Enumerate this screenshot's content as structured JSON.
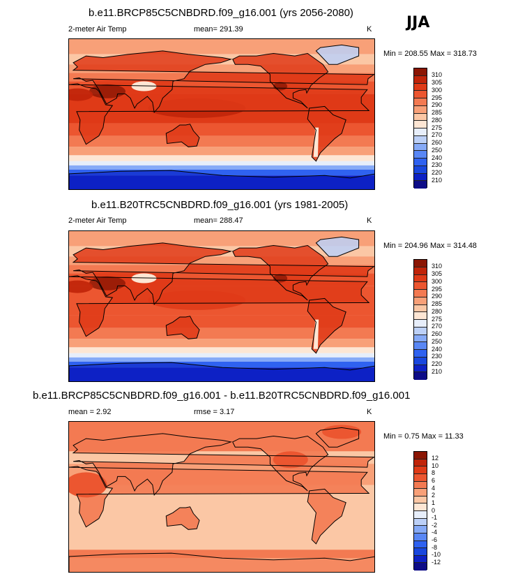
{
  "season": "JJA",
  "panels": [
    {
      "title": "b.e11.BRCP85C5CNBDRD.f09_g16.001 (yrs 2056-2080)",
      "left_label": "2-meter Air Temp",
      "mid_label": "mean= 291.39",
      "units": "K",
      "minmax": "Min = 208.55 Max = 318.73"
    },
    {
      "title": "b.e11.B20TRC5CNBDRD.f09_g16.001 (yrs 1981-2005)",
      "left_label": "2-meter Air Temp",
      "mid_label": "mean= 288.47",
      "units": "K",
      "minmax": "Min = 204.96 Max = 314.48"
    },
    {
      "title": "b.e11.BRCP85C5CNBDRD.f09_g16.001 - b.e11.B20TRC5CNBDRD.f09_g16.001",
      "left_label": "mean =   2.92",
      "mid_label": "rmse =   3.17",
      "units": "K",
      "minmax": "Min =   0.75 Max =  11.33"
    }
  ],
  "chart_data": [
    {
      "type": "heatmap",
      "title": "b.e11.BRCP85C5CNBDRD.f09_g16.001 (yrs 2056-2080)",
      "variable": "2-meter Air Temp",
      "units": "K",
      "mean": 291.39,
      "min": 208.55,
      "max": 318.73,
      "colorbar_levels": [
        210,
        220,
        230,
        240,
        250,
        260,
        270,
        275,
        280,
        285,
        290,
        295,
        300,
        305,
        310
      ],
      "colorbar_colors": [
        "#0d0c87",
        "#0d21c5",
        "#1947de",
        "#2f62f0",
        "#5987f5",
        "#86aaf7",
        "#bcd0f7",
        "#e7eefa",
        "#fde6d4",
        "#fbc7a5",
        "#f8a078",
        "#f37a52",
        "#ec5630",
        "#df3a17",
        "#c02409",
        "#8b1604"
      ]
    },
    {
      "type": "heatmap",
      "title": "b.e11.B20TRC5CNBDRD.f09_g16.001 (yrs 1981-2005)",
      "variable": "2-meter Air Temp",
      "units": "K",
      "mean": 288.47,
      "min": 204.96,
      "max": 314.48,
      "colorbar_levels": [
        210,
        220,
        230,
        240,
        250,
        260,
        270,
        275,
        280,
        285,
        290,
        295,
        300,
        305,
        310
      ],
      "colorbar_colors": [
        "#0d0c87",
        "#0d21c5",
        "#1947de",
        "#2f62f0",
        "#5987f5",
        "#86aaf7",
        "#bcd0f7",
        "#e7eefa",
        "#fde6d4",
        "#fbc7a5",
        "#f8a078",
        "#f37a52",
        "#ec5630",
        "#df3a17",
        "#c02409",
        "#8b1604"
      ]
    },
    {
      "type": "heatmap",
      "title": "b.e11.BRCP85C5CNBDRD.f09_g16.001 - b.e11.B20TRC5CNBDRD.f09_g16.001",
      "units": "K",
      "mean": 2.92,
      "rmse": 3.17,
      "min": 0.75,
      "max": 11.33,
      "colorbar_levels": [
        -12,
        -10,
        -8,
        -6,
        -4,
        -2,
        -1,
        0,
        1,
        2,
        4,
        6,
        8,
        10,
        12
      ],
      "colorbar_colors": [
        "#0d0c87",
        "#0d21c5",
        "#1947de",
        "#2f62f0",
        "#5987f5",
        "#86aaf7",
        "#bcd0f7",
        "#e7eefa",
        "#fde6d4",
        "#fbc7a5",
        "#f8a078",
        "#f37a52",
        "#ec5630",
        "#df3a17",
        "#c02409",
        "#8b1604"
      ]
    }
  ]
}
